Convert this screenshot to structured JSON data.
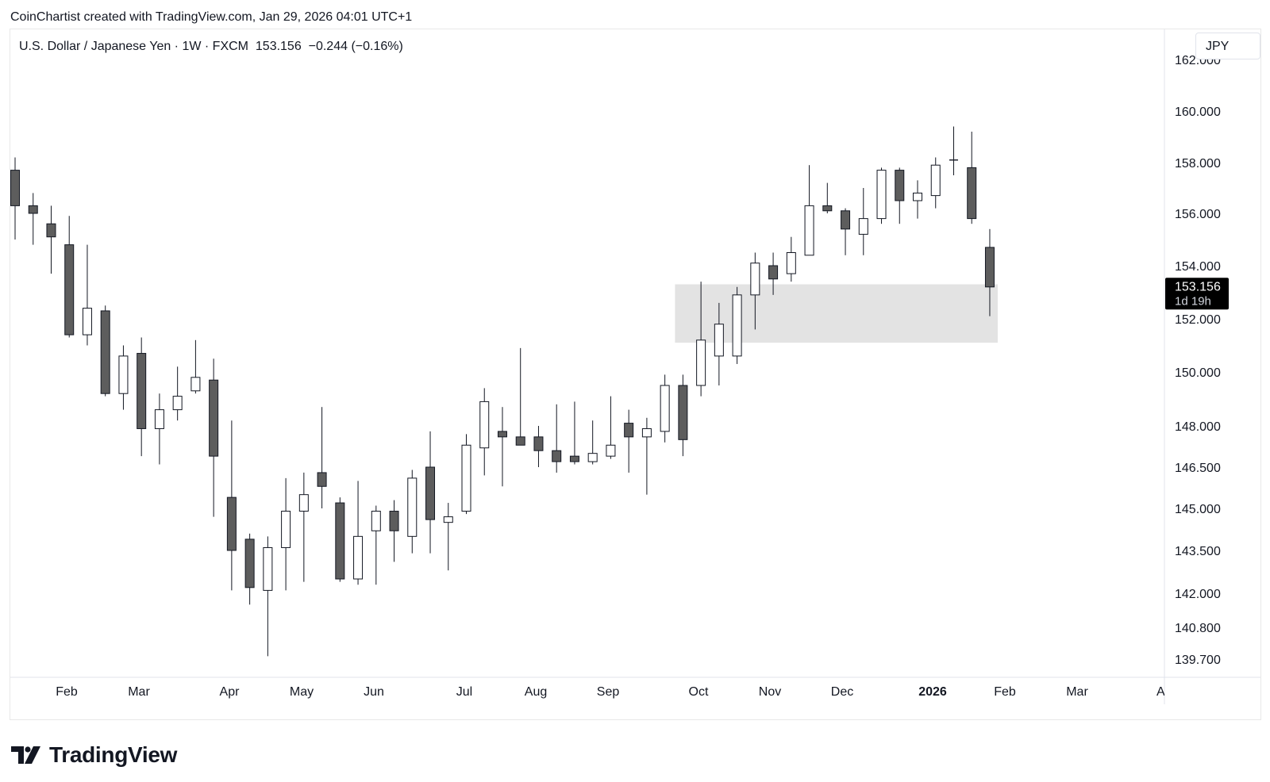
{
  "header": {
    "credit": "CoinChartist created with TradingView.com, Jan 29, 2026 04:01 UTC+1",
    "legend": "U.S. Dollar / Japanese Yen · 1W · FXCM  153.156  −0.244 (−0.16%)",
    "currency": "JPY"
  },
  "branding": {
    "logo_text": "TradingView"
  },
  "colors": {
    "bear_body": "#5d5d5d",
    "bull_body": "#ffffff",
    "wick": "#131722",
    "zone": "#e3e3e3",
    "price_label_bg": "#000000"
  },
  "chart_data": {
    "type": "candlestick",
    "title": "U.S. Dollar / Japanese Yen",
    "interval": "1W",
    "exchange": "FXCM",
    "last_price": 153.156,
    "change": -0.244,
    "change_percent": -0.16,
    "price_label": {
      "value": "153.156",
      "countdown": "1d 19h"
    },
    "y_axis": {
      "ticks": [
        139.7,
        140.8,
        142.0,
        143.5,
        145.0,
        146.5,
        148.0,
        150.0,
        152.0,
        154.0,
        156.0,
        158.0,
        160.0
      ],
      "tick_labels": [
        "139.700",
        "140.800",
        "142.000",
        "143.500",
        "145.000",
        "146.500",
        "148.000",
        "150.000",
        "152.000",
        "154.000",
        "156.000",
        "158.000",
        "160.000"
      ],
      "range": [
        139.3,
        161.9
      ]
    },
    "x_axis": {
      "labels": [
        {
          "text": "Feb",
          "bold": false
        },
        {
          "text": "Mar",
          "bold": false
        },
        {
          "text": "Apr",
          "bold": false
        },
        {
          "text": "May",
          "bold": false
        },
        {
          "text": "Jun",
          "bold": false
        },
        {
          "text": "Jul",
          "bold": false
        },
        {
          "text": "Aug",
          "bold": false
        },
        {
          "text": "Sep",
          "bold": false
        },
        {
          "text": "Oct",
          "bold": false
        },
        {
          "text": "Nov",
          "bold": false
        },
        {
          "text": "Dec",
          "bold": false
        },
        {
          "text": "2026",
          "bold": true
        },
        {
          "text": "Feb",
          "bold": false
        },
        {
          "text": "Mar",
          "bold": false
        }
      ]
    },
    "zone": {
      "from_low": 151.1,
      "to_high": 153.3,
      "start_week": 37,
      "end_week": 54
    },
    "candles": [
      {
        "o": 157.7,
        "h": 158.2,
        "l": 155.0,
        "c": 156.3
      },
      {
        "o": 156.3,
        "h": 156.8,
        "l": 154.8,
        "c": 156.0
      },
      {
        "o": 155.6,
        "h": 156.3,
        "l": 153.7,
        "c": 155.1
      },
      {
        "o": 154.8,
        "h": 155.9,
        "l": 151.3,
        "c": 151.4
      },
      {
        "o": 151.4,
        "h": 154.8,
        "l": 151.0,
        "c": 152.4
      },
      {
        "o": 152.3,
        "h": 152.5,
        "l": 149.1,
        "c": 149.2
      },
      {
        "o": 149.2,
        "h": 151.0,
        "l": 148.6,
        "c": 150.6
      },
      {
        "o": 150.7,
        "h": 151.3,
        "l": 146.9,
        "c": 147.9
      },
      {
        "o": 147.9,
        "h": 149.2,
        "l": 146.6,
        "c": 148.6
      },
      {
        "o": 148.6,
        "h": 150.2,
        "l": 148.2,
        "c": 149.1
      },
      {
        "o": 149.3,
        "h": 151.2,
        "l": 149.2,
        "c": 149.8
      },
      {
        "o": 149.7,
        "h": 150.5,
        "l": 144.7,
        "c": 146.9
      },
      {
        "o": 145.4,
        "h": 148.2,
        "l": 142.1,
        "c": 143.5
      },
      {
        "o": 143.9,
        "h": 144.1,
        "l": 141.6,
        "c": 142.2
      },
      {
        "o": 142.1,
        "h": 144.0,
        "l": 139.8,
        "c": 143.6
      },
      {
        "o": 143.6,
        "h": 146.1,
        "l": 142.1,
        "c": 144.9
      },
      {
        "o": 144.9,
        "h": 146.3,
        "l": 142.4,
        "c": 145.5
      },
      {
        "o": 146.3,
        "h": 148.7,
        "l": 145.0,
        "c": 145.8
      },
      {
        "o": 145.2,
        "h": 145.4,
        "l": 142.4,
        "c": 142.5
      },
      {
        "o": 142.5,
        "h": 146.0,
        "l": 142.3,
        "c": 144.0
      },
      {
        "o": 144.2,
        "h": 145.1,
        "l": 142.3,
        "c": 144.9
      },
      {
        "o": 144.9,
        "h": 145.3,
        "l": 143.1,
        "c": 144.2
      },
      {
        "o": 144.0,
        "h": 146.4,
        "l": 143.4,
        "c": 146.1
      },
      {
        "o": 146.5,
        "h": 147.8,
        "l": 143.4,
        "c": 144.6
      },
      {
        "o": 144.5,
        "h": 145.2,
        "l": 142.8,
        "c": 144.7
      },
      {
        "o": 144.9,
        "h": 147.7,
        "l": 144.8,
        "c": 147.3
      },
      {
        "o": 147.2,
        "h": 149.4,
        "l": 146.2,
        "c": 148.9
      },
      {
        "o": 147.8,
        "h": 148.7,
        "l": 145.8,
        "c": 147.6
      },
      {
        "o": 147.6,
        "h": 150.9,
        "l": 147.3,
        "c": 147.3
      },
      {
        "o": 147.6,
        "h": 148.0,
        "l": 146.5,
        "c": 147.1
      },
      {
        "o": 147.1,
        "h": 148.8,
        "l": 146.3,
        "c": 146.7
      },
      {
        "o": 146.9,
        "h": 148.9,
        "l": 146.6,
        "c": 146.7
      },
      {
        "o": 146.7,
        "h": 148.2,
        "l": 146.6,
        "c": 147.0
      },
      {
        "o": 146.9,
        "h": 149.1,
        "l": 146.8,
        "c": 147.3
      },
      {
        "o": 148.1,
        "h": 148.6,
        "l": 146.3,
        "c": 147.6
      },
      {
        "o": 147.6,
        "h": 148.3,
        "l": 145.5,
        "c": 147.9
      },
      {
        "o": 147.8,
        "h": 149.9,
        "l": 147.4,
        "c": 149.5
      },
      {
        "o": 149.5,
        "h": 149.9,
        "l": 146.9,
        "c": 147.5
      },
      {
        "o": 149.5,
        "h": 153.4,
        "l": 149.1,
        "c": 151.2
      },
      {
        "o": 150.6,
        "h": 152.6,
        "l": 149.5,
        "c": 151.8
      },
      {
        "o": 150.6,
        "h": 153.2,
        "l": 150.3,
        "c": 152.9
      },
      {
        "o": 152.9,
        "h": 154.5,
        "l": 151.6,
        "c": 154.1
      },
      {
        "o": 154.0,
        "h": 154.5,
        "l": 152.9,
        "c": 153.5
      },
      {
        "o": 153.7,
        "h": 155.1,
        "l": 153.4,
        "c": 154.5
      },
      {
        "o": 154.4,
        "h": 157.9,
        "l": 154.4,
        "c": 156.3
      },
      {
        "o": 156.3,
        "h": 157.2,
        "l": 156.0,
        "c": 156.1
      },
      {
        "o": 156.1,
        "h": 156.2,
        "l": 154.4,
        "c": 155.4
      },
      {
        "o": 155.2,
        "h": 157.0,
        "l": 154.4,
        "c": 155.8
      },
      {
        "o": 155.8,
        "h": 157.8,
        "l": 155.6,
        "c": 157.7
      },
      {
        "o": 157.7,
        "h": 157.8,
        "l": 155.6,
        "c": 156.5
      },
      {
        "o": 156.5,
        "h": 157.3,
        "l": 155.8,
        "c": 156.8
      },
      {
        "o": 156.7,
        "h": 158.2,
        "l": 156.2,
        "c": 157.9
      },
      {
        "o": 158.1,
        "h": 159.4,
        "l": 157.5,
        "c": 158.1
      },
      {
        "o": 157.8,
        "h": 159.2,
        "l": 155.6,
        "c": 155.8
      },
      {
        "o": 154.7,
        "h": 155.4,
        "l": 152.1,
        "c": 153.2
      }
    ]
  }
}
